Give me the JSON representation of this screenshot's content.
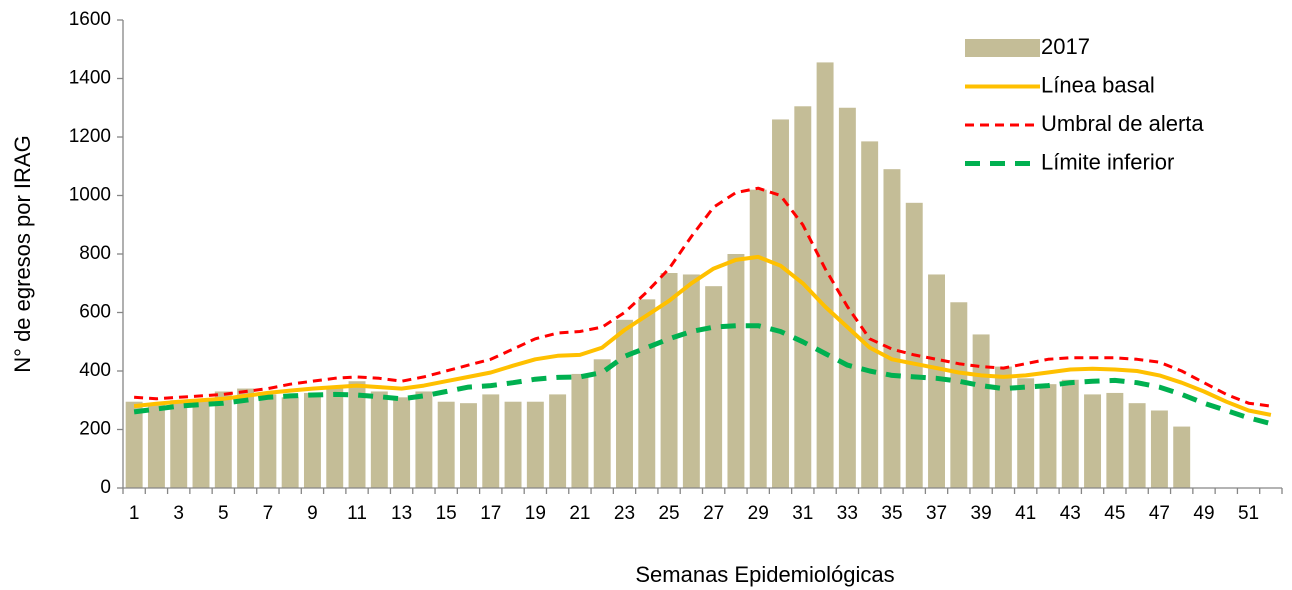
{
  "chart_data": {
    "type": "combo",
    "y_label": "N° de egresos por IRAG",
    "x_label": "Semanas Epidemiológicas",
    "categories": [
      1,
      null,
      3,
      null,
      5,
      null,
      7,
      null,
      9,
      null,
      11,
      null,
      13,
      null,
      15,
      null,
      17,
      null,
      19,
      null,
      21,
      null,
      23,
      null,
      25,
      null,
      27,
      null,
      29,
      null,
      31,
      null,
      33,
      null,
      35,
      null,
      37,
      null,
      39,
      null,
      41,
      null,
      43,
      null,
      45,
      null,
      47,
      null,
      49,
      null,
      51,
      null
    ],
    "ylim": [
      0,
      1600
    ],
    "yticks": [
      0,
      200,
      400,
      600,
      800,
      1000,
      1200,
      1400,
      1600
    ],
    "grid": false,
    "legend": "top-right",
    "series": [
      {
        "name": "2017",
        "type": "bar",
        "color": "#c4bd97",
        "values": [
          295,
          290,
          300,
          300,
          330,
          340,
          320,
          310,
          325,
          345,
          365,
          330,
          310,
          330,
          295,
          290,
          320,
          295,
          295,
          320,
          390,
          440,
          575,
          645,
          735,
          730,
          690,
          800,
          1020,
          1260,
          1305,
          1455,
          1300,
          1185,
          1090,
          975,
          730,
          635,
          525,
          415,
          375,
          355,
          370,
          320,
          325,
          290,
          265,
          210,
          null,
          null,
          null,
          null
        ]
      },
      {
        "name": "Línea basal",
        "type": "line",
        "color": "#ffc000",
        "width": 4,
        "dash": "solid",
        "values": [
          280,
          288,
          295,
          300,
          305,
          315,
          325,
          333,
          340,
          345,
          350,
          345,
          340,
          350,
          365,
          380,
          395,
          418,
          440,
          452,
          455,
          480,
          540,
          590,
          640,
          700,
          750,
          780,
          790,
          760,
          700,
          620,
          550,
          480,
          440,
          425,
          410,
          395,
          385,
          380,
          385,
          395,
          405,
          408,
          405,
          400,
          385,
          360,
          330,
          295,
          265,
          250
        ]
      },
      {
        "name": "Umbral de alerta",
        "type": "line",
        "color": "#ff0000",
        "width": 3,
        "dash": "dashed",
        "values": [
          310,
          305,
          310,
          315,
          320,
          330,
          340,
          355,
          365,
          375,
          380,
          375,
          365,
          380,
          400,
          420,
          440,
          475,
          510,
          530,
          535,
          550,
          600,
          670,
          750,
          860,
          960,
          1010,
          1025,
          1000,
          900,
          750,
          620,
          510,
          475,
          455,
          440,
          425,
          415,
          410,
          425,
          440,
          445,
          445,
          445,
          440,
          430,
          400,
          360,
          320,
          290,
          280
        ]
      },
      {
        "name": "Límite inferior",
        "type": "line",
        "color": "#00b050",
        "width": 5,
        "dash": "dashed",
        "values": [
          260,
          270,
          280,
          285,
          290,
          300,
          310,
          315,
          318,
          320,
          318,
          312,
          305,
          315,
          330,
          345,
          350,
          360,
          372,
          378,
          380,
          395,
          450,
          480,
          510,
          535,
          550,
          555,
          555,
          535,
          500,
          460,
          420,
          400,
          385,
          380,
          375,
          365,
          350,
          340,
          345,
          350,
          360,
          365,
          368,
          360,
          345,
          320,
          290,
          265,
          240,
          220
        ]
      }
    ]
  }
}
